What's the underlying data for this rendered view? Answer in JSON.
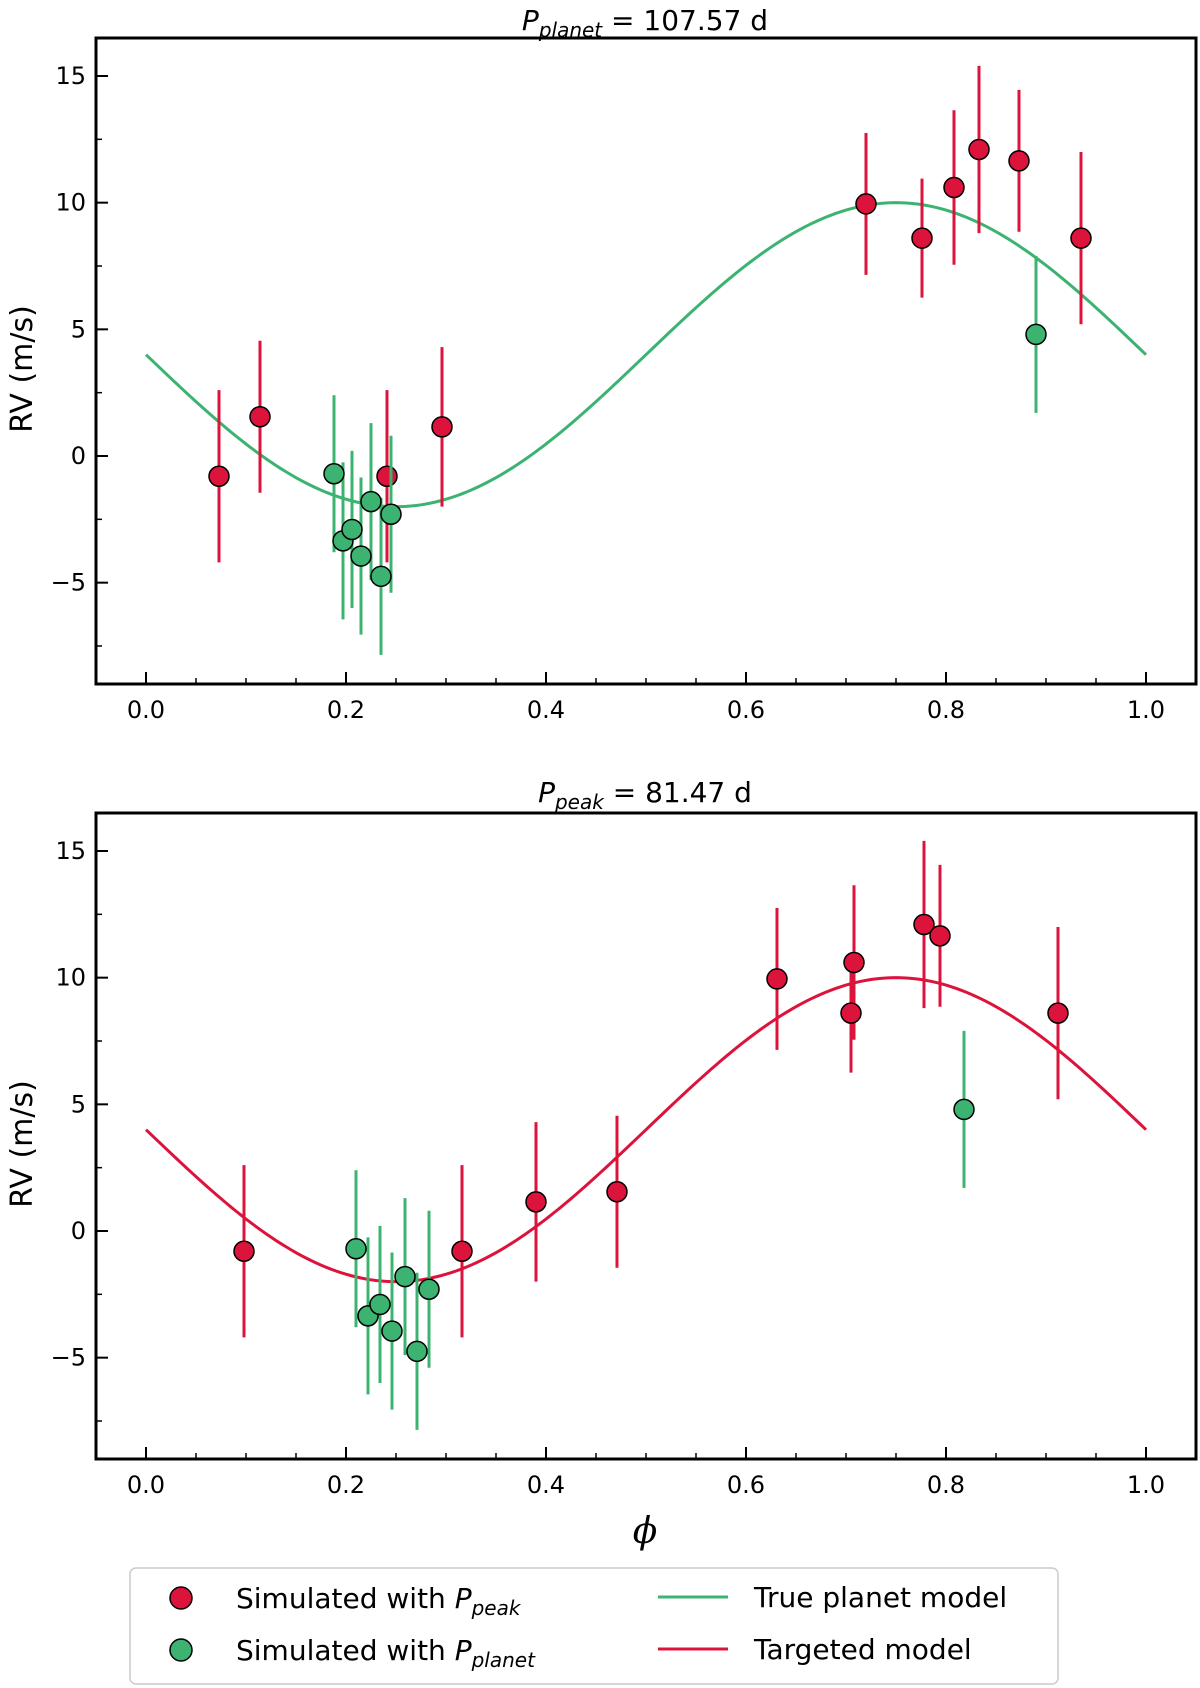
{
  "colors": {
    "red": "#dc143c",
    "green": "#3cb371",
    "marker_edge": "#000000"
  },
  "chart_data": [
    {
      "type": "scatter",
      "title": {
        "symbol": "P",
        "subscript": "planet",
        "value_text": " = 107.57 d"
      },
      "xlabel": "",
      "ylabel": "RV (m/s)",
      "xlim": [
        -0.05,
        1.05
      ],
      "ylim": [
        -9,
        16.5
      ],
      "xticks": [
        0.0,
        0.2,
        0.4,
        0.6,
        0.8,
        1.0
      ],
      "xtick_labels": [
        "0.0",
        "0.2",
        "0.4",
        "0.6",
        "0.8",
        "1.0"
      ],
      "yticks": [
        -5,
        0,
        5,
        10,
        15
      ],
      "ytick_labels": [
        "−5",
        "0",
        "5",
        "10",
        "15"
      ],
      "model": {
        "kind": "sine",
        "amplitude": 6,
        "offset": 4,
        "peak_phase": 0.75,
        "color": "green"
      },
      "series": [
        {
          "color": "red",
          "x": [
            0.073,
            0.114,
            0.241,
            0.296,
            0.72,
            0.776,
            0.808,
            0.833,
            0.873,
            0.935
          ],
          "y": [
            -0.8,
            1.55,
            -0.8,
            1.15,
            9.95,
            8.6,
            10.6,
            12.1,
            11.65,
            8.6
          ],
          "yerr": [
            3.4,
            3.0,
            3.4,
            3.15,
            2.8,
            2.35,
            3.05,
            3.3,
            2.8,
            3.4
          ]
        },
        {
          "color": "green",
          "x": [
            0.188,
            0.197,
            0.206,
            0.215,
            0.225,
            0.235,
            0.245,
            0.89
          ],
          "y": [
            -0.7,
            -3.35,
            -2.9,
            -3.95,
            -1.8,
            -4.75,
            -2.3,
            4.8
          ],
          "yerr": [
            3.1,
            3.1,
            3.1,
            3.1,
            3.1,
            3.1,
            3.1,
            3.1
          ]
        }
      ]
    },
    {
      "type": "scatter",
      "title": {
        "symbol": "P",
        "subscript": "peak",
        "value_text": " = 81.47 d"
      },
      "xlabel": "ϕ",
      "ylabel": "RV (m/s)",
      "xlim": [
        -0.05,
        1.05
      ],
      "ylim": [
        -9,
        16.5
      ],
      "xticks": [
        0.0,
        0.2,
        0.4,
        0.6,
        0.8,
        1.0
      ],
      "xtick_labels": [
        "0.0",
        "0.2",
        "0.4",
        "0.6",
        "0.8",
        "1.0"
      ],
      "yticks": [
        -5,
        0,
        5,
        10,
        15
      ],
      "ytick_labels": [
        "−5",
        "0",
        "5",
        "10",
        "15"
      ],
      "model": {
        "kind": "sine",
        "amplitude": 6,
        "offset": 4,
        "peak_phase": 0.75,
        "color": "red"
      },
      "series": [
        {
          "color": "red",
          "x": [
            0.098,
            0.316,
            0.39,
            0.471,
            0.631,
            0.705,
            0.708,
            0.778,
            0.794,
            0.912
          ],
          "y": [
            -0.8,
            -0.8,
            1.15,
            1.55,
            9.95,
            8.6,
            10.6,
            12.1,
            11.65,
            8.6
          ],
          "yerr": [
            3.4,
            3.4,
            3.15,
            3.0,
            2.8,
            2.35,
            3.05,
            3.3,
            2.8,
            3.4
          ]
        },
        {
          "color": "green",
          "x": [
            0.21,
            0.222,
            0.234,
            0.246,
            0.259,
            0.271,
            0.283,
            0.818
          ],
          "y": [
            -0.7,
            -3.35,
            -2.9,
            -3.95,
            -1.8,
            -4.75,
            -2.3,
            4.8
          ],
          "yerr": [
            3.1,
            3.1,
            3.1,
            3.1,
            3.1,
            3.1,
            3.1,
            3.1
          ]
        }
      ]
    }
  ],
  "legend": {
    "placement": "bottom-center",
    "items": [
      {
        "kind": "marker",
        "color": "red",
        "label": "Simulated with ",
        "symbol": "P",
        "subscript": "peak"
      },
      {
        "kind": "marker",
        "color": "green",
        "label": "Simulated with ",
        "symbol": "P",
        "subscript": "planet"
      },
      {
        "kind": "line",
        "color": "green",
        "label": "True planet model"
      },
      {
        "kind": "line",
        "color": "red",
        "label": "Targeted model"
      }
    ]
  }
}
